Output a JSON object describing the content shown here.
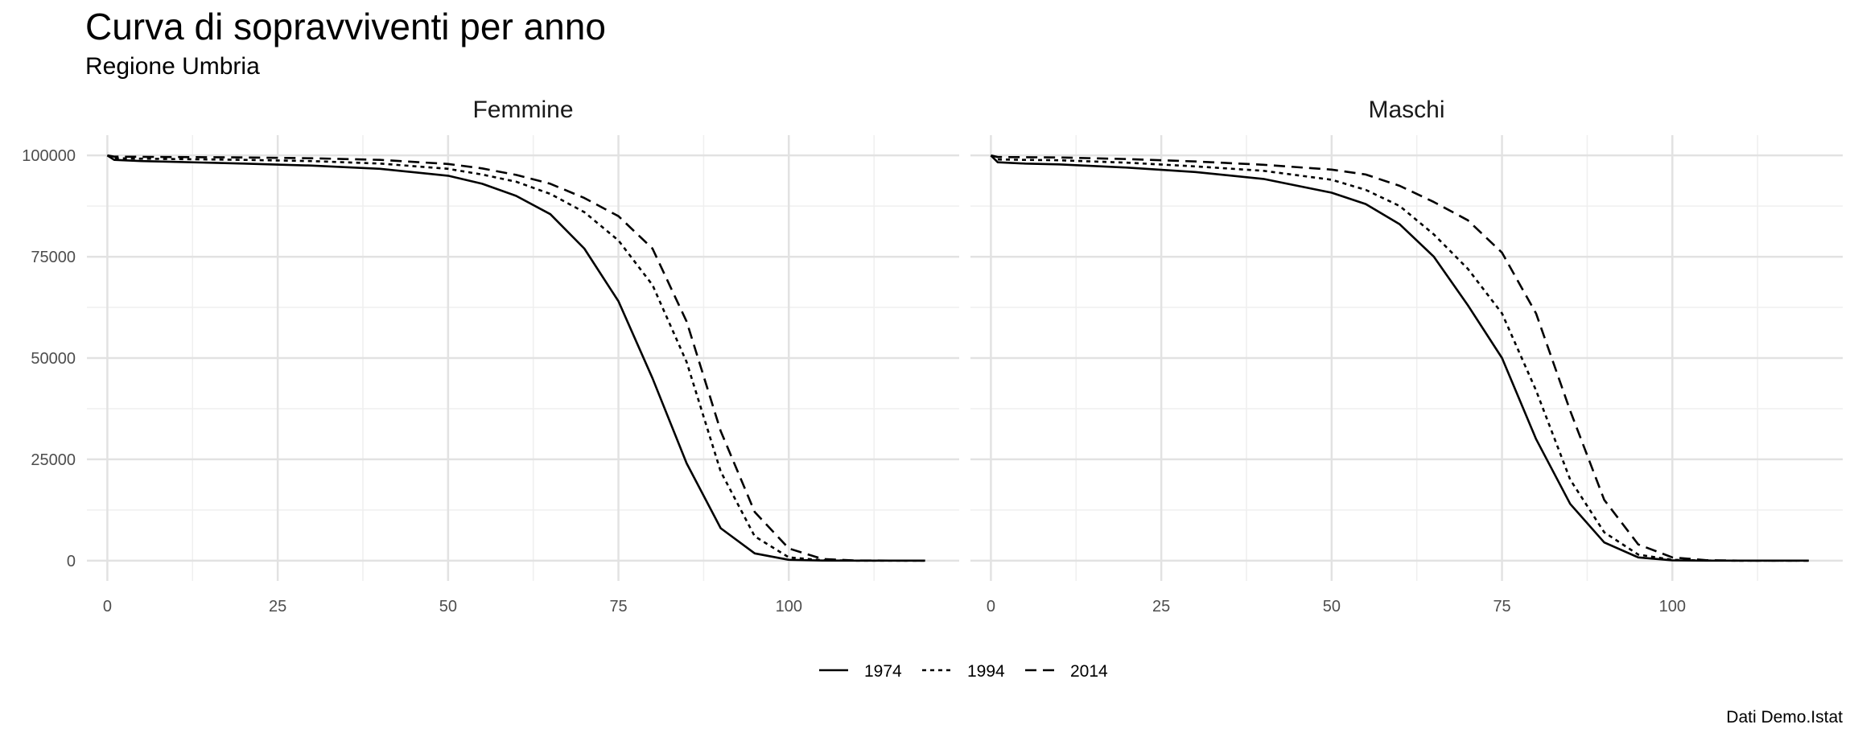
{
  "chart_data": {
    "type": "line",
    "title": "Curva di sopravviventi per anno",
    "subtitle": "Regione Umbria",
    "caption": "Dati Demo.Istat",
    "xlabel": "",
    "ylabel": "",
    "xlim": [
      -3,
      125
    ],
    "ylim": [
      -5000,
      105000
    ],
    "x_ticks": [
      0,
      25,
      50,
      75,
      100
    ],
    "y_ticks": [
      0,
      25000,
      50000,
      75000,
      100000
    ],
    "grid": true,
    "legend_position": "bottom",
    "panels": [
      {
        "name": "Femmine",
        "series": [
          {
            "name": "1974",
            "linestyle": "solid",
            "x": [
              0,
              1,
              5,
              10,
              20,
              30,
              40,
              50,
              55,
              60,
              65,
              70,
              75,
              80,
              85,
              90,
              95,
              100,
              105,
              110,
              120
            ],
            "y": [
              100000,
              98900,
              98600,
              98400,
              98000,
              97500,
              96700,
              95000,
              93000,
              90000,
              85500,
              77000,
              64000,
              45000,
              24000,
              8000,
              1800,
              200,
              20,
              0,
              0
            ]
          },
          {
            "name": "1994",
            "linestyle": "dotted",
            "x": [
              0,
              1,
              5,
              10,
              20,
              30,
              40,
              50,
              55,
              60,
              65,
              70,
              75,
              80,
              85,
              90,
              95,
              100,
              105,
              110,
              120
            ],
            "y": [
              100000,
              99300,
              99200,
              99100,
              98900,
              98600,
              98000,
              96700,
              95300,
              93500,
              90500,
              86000,
              79000,
              68000,
              49000,
              22000,
              6000,
              800,
              100,
              10,
              0
            ]
          },
          {
            "name": "2014",
            "linestyle": "dashed",
            "x": [
              0,
              1,
              5,
              10,
              20,
              30,
              40,
              50,
              55,
              60,
              65,
              70,
              75,
              80,
              85,
              90,
              95,
              100,
              105,
              110,
              120
            ],
            "y": [
              100000,
              99700,
              99650,
              99600,
              99500,
              99300,
              98900,
              97900,
              96800,
              95200,
              93000,
              89500,
              85000,
              77000,
              59000,
              32000,
              12000,
              3000,
              400,
              30,
              0
            ]
          }
        ]
      },
      {
        "name": "Maschi",
        "series": [
          {
            "name": "1974",
            "linestyle": "solid",
            "x": [
              0,
              1,
              5,
              10,
              20,
              30,
              40,
              50,
              55,
              60,
              65,
              70,
              75,
              80,
              85,
              90,
              95,
              100,
              105,
              110,
              120
            ],
            "y": [
              100000,
              98300,
              98000,
              97800,
              97000,
              95900,
              94200,
              90800,
              88000,
              83000,
              75000,
              63000,
              50000,
              30000,
              14000,
              4500,
              800,
              80,
              10,
              0,
              0
            ]
          },
          {
            "name": "1994",
            "linestyle": "dotted",
            "x": [
              0,
              1,
              5,
              10,
              20,
              30,
              40,
              50,
              55,
              60,
              65,
              70,
              75,
              80,
              85,
              90,
              95,
              100,
              105,
              110,
              120
            ],
            "y": [
              100000,
              99000,
              98900,
              98800,
              98200,
              97300,
              96200,
              94000,
              91500,
              87500,
              80500,
              72000,
              61000,
              42000,
              20000,
              7000,
              1500,
              200,
              20,
              0,
              0
            ]
          },
          {
            "name": "2014",
            "linestyle": "dashed",
            "x": [
              0,
              1,
              5,
              10,
              20,
              30,
              40,
              50,
              55,
              60,
              65,
              70,
              75,
              80,
              85,
              90,
              95,
              100,
              105,
              110,
              120
            ],
            "y": [
              100000,
              99600,
              99550,
              99500,
              99100,
              98500,
              97700,
              96500,
              95300,
              92500,
              88500,
              84000,
              76000,
              61000,
              37000,
              15000,
              4000,
              800,
              100,
              10,
              0
            ]
          }
        ]
      }
    ],
    "legend": [
      {
        "name": "1974",
        "linestyle": "solid"
      },
      {
        "name": "1994",
        "linestyle": "dotted"
      },
      {
        "name": "2014",
        "linestyle": "dashed"
      }
    ],
    "colors": {
      "line": "#000000",
      "grid_major": "#e2e2e2",
      "grid_minor": "#efefef",
      "tick_text": "#4d4d4d"
    }
  }
}
